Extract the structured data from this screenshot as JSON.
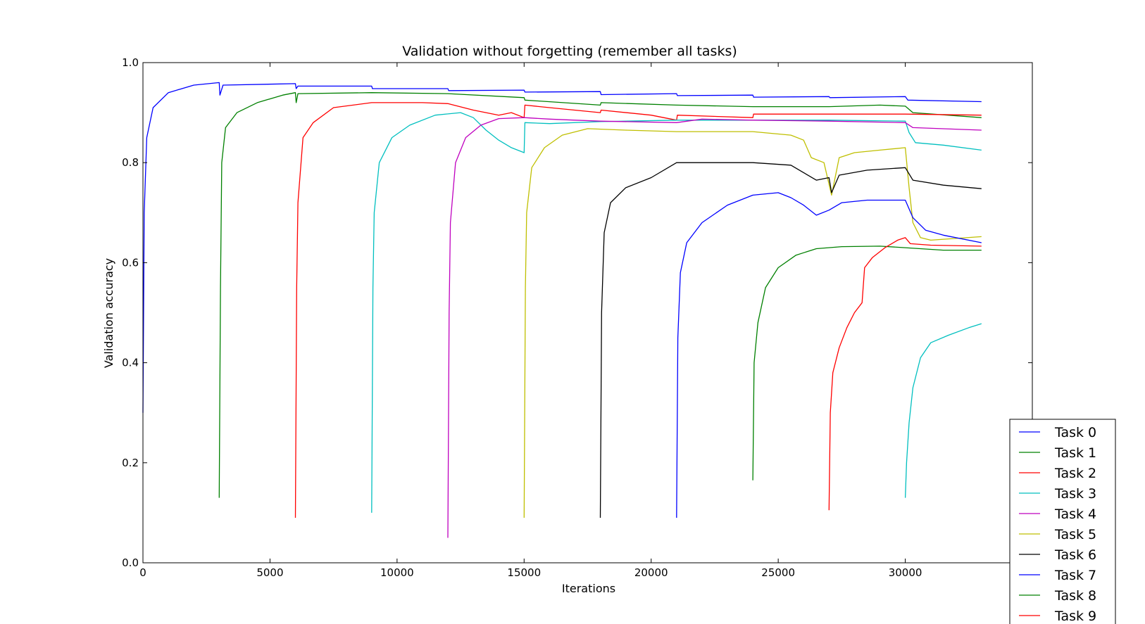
{
  "chart_data": {
    "type": "line",
    "title": "Validation without forgetting (remember all tasks)",
    "xlabel": "Iterations",
    "ylabel": "Validation accuracy",
    "xlim": [
      0,
      35000
    ],
    "ylim": [
      0.0,
      1.0
    ],
    "xticks": [
      "0",
      "5000",
      "10000",
      "15000",
      "20000",
      "25000",
      "30000"
    ],
    "yticks": [
      "0.0",
      "0.2",
      "0.4",
      "0.6",
      "0.8",
      "1.0"
    ],
    "grid": false,
    "legend_position": "bottom-right",
    "series": [
      {
        "name": "Task 0",
        "color": "#0000ff",
        "points": [
          [
            0,
            0.3
          ],
          [
            50,
            0.7
          ],
          [
            150,
            0.85
          ],
          [
            400,
            0.91
          ],
          [
            1000,
            0.94
          ],
          [
            2000,
            0.955
          ],
          [
            3000,
            0.96
          ],
          [
            3030,
            0.935
          ],
          [
            3150,
            0.955
          ],
          [
            6000,
            0.958
          ],
          [
            6030,
            0.948
          ],
          [
            6100,
            0.953
          ],
          [
            9000,
            0.953
          ],
          [
            9030,
            0.948
          ],
          [
            12000,
            0.948
          ],
          [
            12030,
            0.944
          ],
          [
            15000,
            0.945
          ],
          [
            15030,
            0.941
          ],
          [
            18000,
            0.942
          ],
          [
            18030,
            0.936
          ],
          [
            21000,
            0.938
          ],
          [
            21030,
            0.934
          ],
          [
            24000,
            0.935
          ],
          [
            24030,
            0.931
          ],
          [
            27000,
            0.932
          ],
          [
            27030,
            0.93
          ],
          [
            30000,
            0.932
          ],
          [
            30100,
            0.925
          ],
          [
            33000,
            0.922
          ]
        ]
      },
      {
        "name": "Task 1",
        "color": "#008000",
        "points": [
          [
            3000,
            0.13
          ],
          [
            3050,
            0.55
          ],
          [
            3100,
            0.8
          ],
          [
            3250,
            0.87
          ],
          [
            3700,
            0.9
          ],
          [
            4500,
            0.92
          ],
          [
            5500,
            0.935
          ],
          [
            6000,
            0.94
          ],
          [
            6030,
            0.92
          ],
          [
            6100,
            0.938
          ],
          [
            9000,
            0.94
          ],
          [
            12000,
            0.938
          ],
          [
            15000,
            0.93
          ],
          [
            15030,
            0.925
          ],
          [
            18000,
            0.915
          ],
          [
            18030,
            0.92
          ],
          [
            21000,
            0.915
          ],
          [
            24000,
            0.912
          ],
          [
            27000,
            0.912
          ],
          [
            29000,
            0.915
          ],
          [
            30000,
            0.913
          ],
          [
            30300,
            0.9
          ],
          [
            33000,
            0.89
          ]
        ]
      },
      {
        "name": "Task 2",
        "color": "#ff0000",
        "points": [
          [
            6000,
            0.09
          ],
          [
            6050,
            0.55
          ],
          [
            6100,
            0.72
          ],
          [
            6300,
            0.85
          ],
          [
            6700,
            0.88
          ],
          [
            7500,
            0.91
          ],
          [
            9000,
            0.92
          ],
          [
            11000,
            0.92
          ],
          [
            12000,
            0.918
          ],
          [
            13000,
            0.905
          ],
          [
            14000,
            0.895
          ],
          [
            14500,
            0.9
          ],
          [
            15000,
            0.89
          ],
          [
            15030,
            0.915
          ],
          [
            16000,
            0.91
          ],
          [
            18000,
            0.9
          ],
          [
            18030,
            0.905
          ],
          [
            20000,
            0.895
          ],
          [
            21000,
            0.885
          ],
          [
            21030,
            0.895
          ],
          [
            24000,
            0.89
          ],
          [
            24030,
            0.897
          ],
          [
            27000,
            0.897
          ],
          [
            30000,
            0.897
          ],
          [
            33000,
            0.895
          ]
        ]
      },
      {
        "name": "Task 3",
        "color": "#00bfbf",
        "points": [
          [
            9000,
            0.1
          ],
          [
            9050,
            0.55
          ],
          [
            9100,
            0.7
          ],
          [
            9300,
            0.8
          ],
          [
            9800,
            0.85
          ],
          [
            10500,
            0.875
          ],
          [
            11500,
            0.895
          ],
          [
            12500,
            0.9
          ],
          [
            13000,
            0.89
          ],
          [
            13500,
            0.865
          ],
          [
            14000,
            0.845
          ],
          [
            14500,
            0.83
          ],
          [
            15000,
            0.82
          ],
          [
            15030,
            0.88
          ],
          [
            16000,
            0.878
          ],
          [
            18000,
            0.882
          ],
          [
            21000,
            0.885
          ],
          [
            24000,
            0.885
          ],
          [
            27000,
            0.885
          ],
          [
            30000,
            0.883
          ],
          [
            30150,
            0.86
          ],
          [
            30400,
            0.84
          ],
          [
            31500,
            0.835
          ],
          [
            33000,
            0.825
          ]
        ]
      },
      {
        "name": "Task 4",
        "color": "#bf00bf",
        "points": [
          [
            12000,
            0.05
          ],
          [
            12050,
            0.5
          ],
          [
            12100,
            0.68
          ],
          [
            12300,
            0.8
          ],
          [
            12700,
            0.85
          ],
          [
            13300,
            0.875
          ],
          [
            14000,
            0.888
          ],
          [
            15000,
            0.89
          ],
          [
            16000,
            0.887
          ],
          [
            17000,
            0.885
          ],
          [
            18000,
            0.883
          ],
          [
            21000,
            0.88
          ],
          [
            22000,
            0.887
          ],
          [
            24000,
            0.885
          ],
          [
            27000,
            0.883
          ],
          [
            30000,
            0.88
          ],
          [
            30300,
            0.87
          ],
          [
            33000,
            0.865
          ]
        ]
      },
      {
        "name": "Task 5",
        "color": "#bfbf00",
        "points": [
          [
            15000,
            0.09
          ],
          [
            15050,
            0.55
          ],
          [
            15100,
            0.7
          ],
          [
            15300,
            0.79
          ],
          [
            15800,
            0.83
          ],
          [
            16500,
            0.855
          ],
          [
            17500,
            0.868
          ],
          [
            19000,
            0.865
          ],
          [
            21000,
            0.862
          ],
          [
            24000,
            0.862
          ],
          [
            25500,
            0.855
          ],
          [
            26000,
            0.845
          ],
          [
            26300,
            0.81
          ],
          [
            26800,
            0.8
          ],
          [
            27100,
            0.735
          ],
          [
            27400,
            0.81
          ],
          [
            28000,
            0.82
          ],
          [
            29000,
            0.825
          ],
          [
            30000,
            0.83
          ],
          [
            30150,
            0.75
          ],
          [
            30300,
            0.68
          ],
          [
            30600,
            0.65
          ],
          [
            31000,
            0.645
          ],
          [
            33000,
            0.652
          ]
        ]
      },
      {
        "name": "Task 6",
        "color": "#000000",
        "points": [
          [
            18000,
            0.09
          ],
          [
            18050,
            0.5
          ],
          [
            18150,
            0.66
          ],
          [
            18400,
            0.72
          ],
          [
            19000,
            0.75
          ],
          [
            20000,
            0.77
          ],
          [
            21000,
            0.8
          ],
          [
            22000,
            0.8
          ],
          [
            24000,
            0.8
          ],
          [
            25500,
            0.795
          ],
          [
            26000,
            0.78
          ],
          [
            26500,
            0.765
          ],
          [
            27000,
            0.77
          ],
          [
            27100,
            0.74
          ],
          [
            27400,
            0.775
          ],
          [
            28500,
            0.785
          ],
          [
            30000,
            0.79
          ],
          [
            30300,
            0.765
          ],
          [
            31500,
            0.755
          ],
          [
            33000,
            0.748
          ]
        ]
      },
      {
        "name": "Task 7",
        "color": "#0000ff",
        "points": [
          [
            21000,
            0.09
          ],
          [
            21050,
            0.45
          ],
          [
            21150,
            0.58
          ],
          [
            21400,
            0.64
          ],
          [
            22000,
            0.68
          ],
          [
            23000,
            0.715
          ],
          [
            24000,
            0.735
          ],
          [
            25000,
            0.74
          ],
          [
            25500,
            0.73
          ],
          [
            26000,
            0.715
          ],
          [
            26500,
            0.695
          ],
          [
            27000,
            0.705
          ],
          [
            27500,
            0.72
          ],
          [
            28500,
            0.725
          ],
          [
            30000,
            0.725
          ],
          [
            30300,
            0.69
          ],
          [
            30800,
            0.665
          ],
          [
            31500,
            0.655
          ],
          [
            33000,
            0.64
          ]
        ]
      },
      {
        "name": "Task 8",
        "color": "#008000",
        "points": [
          [
            24000,
            0.165
          ],
          [
            24050,
            0.4
          ],
          [
            24200,
            0.48
          ],
          [
            24500,
            0.55
          ],
          [
            25000,
            0.59
          ],
          [
            25700,
            0.615
          ],
          [
            26500,
            0.628
          ],
          [
            27500,
            0.632
          ],
          [
            29000,
            0.633
          ],
          [
            30000,
            0.63
          ],
          [
            31500,
            0.625
          ],
          [
            33000,
            0.625
          ]
        ]
      },
      {
        "name": "Task 9",
        "color": "#ff0000",
        "points": [
          [
            27000,
            0.105
          ],
          [
            27050,
            0.3
          ],
          [
            27150,
            0.38
          ],
          [
            27400,
            0.43
          ],
          [
            27700,
            0.47
          ],
          [
            28000,
            0.5
          ],
          [
            28300,
            0.52
          ],
          [
            28400,
            0.59
          ],
          [
            28700,
            0.61
          ],
          [
            29200,
            0.63
          ],
          [
            29700,
            0.645
          ],
          [
            30000,
            0.65
          ],
          [
            30200,
            0.638
          ],
          [
            31000,
            0.635
          ],
          [
            33000,
            0.633
          ]
        ]
      },
      {
        "name": "",
        "color": "#00bfbf",
        "points": [
          [
            30000,
            0.13
          ],
          [
            30050,
            0.2
          ],
          [
            30150,
            0.28
          ],
          [
            30300,
            0.35
          ],
          [
            30600,
            0.41
          ],
          [
            31000,
            0.44
          ],
          [
            31700,
            0.455
          ],
          [
            32500,
            0.47
          ],
          [
            33000,
            0.478
          ]
        ]
      }
    ]
  }
}
